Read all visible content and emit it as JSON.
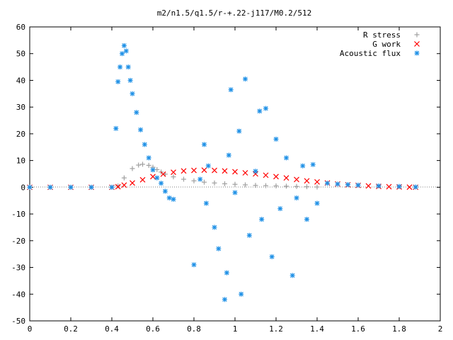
{
  "chart_data": {
    "type": "scatter",
    "title": "m2/n1.5/q1.5/r-+.22-j117/M0.2/512",
    "xlabel": "",
    "ylabel": "",
    "xlim": [
      0,
      2
    ],
    "ylim": [
      -50,
      60
    ],
    "xticks": [
      "0",
      "0.2",
      "0.4",
      "0.6",
      "0.8",
      "1",
      "1.2",
      "1.4",
      "1.6",
      "1.8",
      "2"
    ],
    "yticks": [
      "-50",
      "-40",
      "-30",
      "-20",
      "-10",
      "0",
      "10",
      "20",
      "30",
      "40",
      "50",
      "60"
    ],
    "legend_position": "top-right",
    "grid": false,
    "series": [
      {
        "name": "R stress",
        "marker": "plus",
        "color": "#a0a0a0",
        "x": [
          0.0,
          0.1,
          0.2,
          0.3,
          0.4,
          0.43,
          0.46,
          0.5,
          0.53,
          0.55,
          0.58,
          0.6,
          0.62,
          0.64,
          0.66,
          0.7,
          0.75,
          0.8,
          0.85,
          0.9,
          0.95,
          1.0,
          1.05,
          1.1,
          1.15,
          1.2,
          1.25,
          1.3,
          1.35,
          1.4
        ],
        "y": [
          0,
          0,
          0,
          0,
          0,
          0.5,
          3.5,
          7.0,
          8.3,
          8.6,
          8.2,
          7.5,
          6.6,
          5.7,
          4.9,
          3.9,
          3.0,
          2.4,
          1.9,
          1.6,
          1.3,
          1.1,
          0.9,
          0.7,
          0.6,
          0.5,
          0.4,
          0.3,
          0.2,
          0.1
        ]
      },
      {
        "name": "G work",
        "marker": "cross",
        "color": "#ff0000",
        "x": [
          0.0,
          0.1,
          0.2,
          0.3,
          0.4,
          0.43,
          0.46,
          0.5,
          0.55,
          0.6,
          0.65,
          0.7,
          0.75,
          0.8,
          0.85,
          0.9,
          0.95,
          1.0,
          1.05,
          1.1,
          1.15,
          1.2,
          1.25,
          1.3,
          1.35,
          1.4,
          1.45,
          1.5,
          1.55,
          1.6,
          1.65,
          1.7,
          1.75,
          1.8,
          1.85,
          1.88
        ],
        "y": [
          0,
          0,
          0,
          0,
          0,
          0.2,
          0.8,
          1.6,
          2.8,
          4.0,
          4.9,
          5.6,
          6.1,
          6.3,
          6.4,
          6.3,
          6.1,
          5.8,
          5.4,
          5.0,
          4.5,
          4.0,
          3.5,
          2.9,
          2.4,
          2.0,
          1.6,
          1.2,
          0.9,
          0.7,
          0.5,
          0.3,
          0.2,
          0.1,
          0.05,
          0.0
        ]
      },
      {
        "name": "Acoustic flux",
        "marker": "star",
        "color": "#1e90e6",
        "x": [
          0.0,
          0.1,
          0.2,
          0.3,
          0.4,
          0.42,
          0.43,
          0.44,
          0.45,
          0.46,
          0.47,
          0.48,
          0.49,
          0.5,
          0.52,
          0.54,
          0.56,
          0.58,
          0.6,
          0.62,
          0.64,
          0.66,
          0.68,
          0.7,
          0.8,
          0.83,
          0.85,
          0.86,
          0.87,
          0.9,
          0.92,
          0.95,
          0.96,
          0.97,
          0.98,
          1.0,
          1.02,
          1.03,
          1.05,
          1.07,
          1.1,
          1.12,
          1.13,
          1.15,
          1.18,
          1.2,
          1.22,
          1.25,
          1.28,
          1.3,
          1.33,
          1.35,
          1.38,
          1.4,
          1.45,
          1.5,
          1.55,
          1.6,
          1.7,
          1.8,
          1.88
        ],
        "y": [
          0,
          0,
          0,
          0,
          0,
          22.0,
          39.5,
          45.0,
          50.0,
          53.0,
          51.0,
          45.0,
          40.0,
          35.0,
          28.0,
          21.5,
          16.0,
          11.0,
          6.5,
          3.5,
          1.5,
          -1.5,
          -4.0,
          -4.5,
          -29.0,
          3.0,
          16.0,
          -6.0,
          8.0,
          -15.0,
          -23.0,
          -42.0,
          -32.0,
          12.0,
          36.5,
          -2.0,
          21.0,
          -40.0,
          40.5,
          -18.0,
          6.0,
          28.5,
          -12.0,
          29.5,
          -26.0,
          18.0,
          -8.0,
          11.0,
          -33.0,
          -4.0,
          8.0,
          -12.0,
          8.5,
          -6.0,
          1.5,
          1.2,
          1.0,
          0.8,
          0.5,
          0.3,
          0.1
        ]
      }
    ]
  }
}
